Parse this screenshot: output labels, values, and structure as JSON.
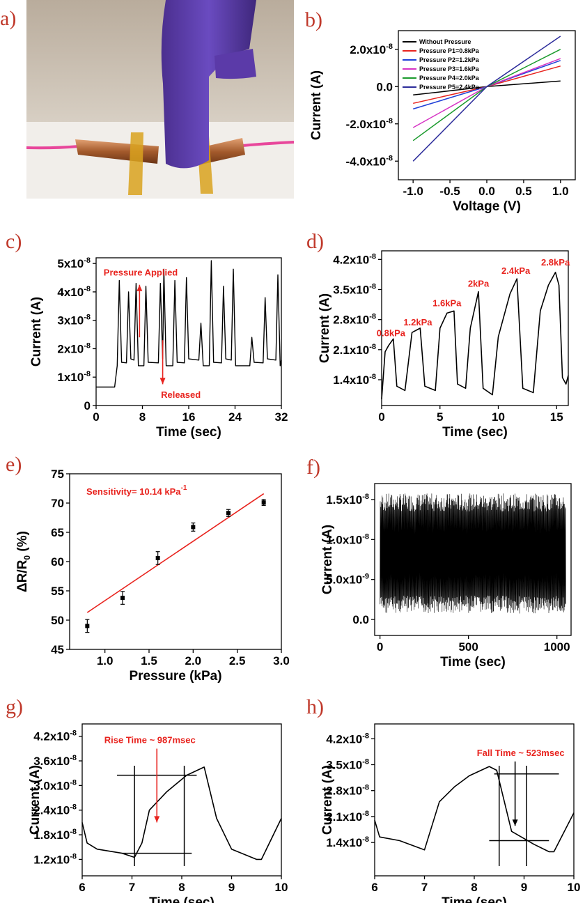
{
  "panel_labels": [
    "a)",
    "b)",
    "c)",
    "d)",
    "e)",
    "f)",
    "g)",
    "h)"
  ],
  "photo": {
    "description": "gloved finger pressing sensor between copper-taped pink wires"
  },
  "colors": {
    "annotation": "#e8231e",
    "line": "#000000",
    "fit": "#e8231e"
  },
  "chart_data": [
    {
      "id": "b",
      "type": "line",
      "xlabel": "Voltage (V)",
      "ylabel": "Current (A)",
      "xlim": [
        -1.2,
        1.2
      ],
      "ylim": [
        -5e-08,
        3e-08
      ],
      "xticks": [
        -1.0,
        -0.5,
        0.0,
        0.5,
        1.0
      ],
      "xticklabels": [
        "-1.0",
        "-0.5",
        "0.0",
        "0.5",
        "1.0"
      ],
      "yticks": [
        2e-08,
        0,
        -2e-08,
        -4e-08
      ],
      "yticklabels": [
        "2.0x10-8",
        "0.0",
        "-2.0x10-8",
        "-4.0x10-8"
      ],
      "legend": "top-left",
      "series": [
        {
          "name": "Without Pressure",
          "color": "#000000",
          "x": [
            -1,
            0,
            1
          ],
          "y": [
            -4.5e-09,
            0,
            3e-09
          ]
        },
        {
          "name": "Pressure P1=0.8kPa",
          "color": "#e8231e",
          "x": [
            -1,
            0,
            1
          ],
          "y": [
            -9e-09,
            0,
            1.1e-08
          ]
        },
        {
          "name": "Pressure P2=1.2kPa",
          "color": "#1f3fd8",
          "x": [
            -1,
            0,
            1
          ],
          "y": [
            -1.2e-08,
            0,
            1.4e-08
          ]
        },
        {
          "name": "Pressure P3=1.6kPa",
          "color": "#d633c4",
          "x": [
            -1,
            0,
            1
          ],
          "y": [
            -2.2e-08,
            0,
            1.5e-08
          ]
        },
        {
          "name": "Pressure P4=2.0kPa",
          "color": "#1a9a2c",
          "x": [
            -1,
            0,
            1
          ],
          "y": [
            -2.9e-08,
            0,
            2e-08
          ]
        },
        {
          "name": "Pressure P5=2.4kPa",
          "color": "#2b2b9a",
          "x": [
            -1,
            0,
            1
          ],
          "y": [
            -4e-08,
            0,
            2.7e-08
          ]
        }
      ]
    },
    {
      "id": "c",
      "type": "line",
      "xlabel": "Time (sec)",
      "ylabel": "Current (A)",
      "xlim": [
        0,
        32
      ],
      "ylim": [
        0,
        5.2e-08
      ],
      "xticks": [
        0,
        8,
        16,
        24,
        32
      ],
      "xticklabels": [
        "0",
        "8",
        "16",
        "24",
        "32"
      ],
      "yticks": [
        0,
        1e-08,
        2e-08,
        3e-08,
        4e-08,
        5e-08
      ],
      "yticklabels": [
        "0",
        "1x10-8",
        "2x10-8",
        "3x10-8",
        "4x10-8",
        "5x10-8"
      ],
      "annotations": [
        "Pressure Applied",
        "Released"
      ],
      "baseline": 6.5e-09,
      "start": 3.2,
      "low": 1.4e-08,
      "peaks": [
        [
          4.0,
          4.4e-08
        ],
        [
          5.6,
          4e-08
        ],
        [
          6.9,
          4.3e-08
        ],
        [
          8.6,
          4.2e-08
        ],
        [
          11.1,
          4.3e-08
        ],
        [
          11.7,
          4.8e-08
        ],
        [
          13.6,
          4.4e-08
        ],
        [
          15.6,
          4.5e-08
        ],
        [
          18.1,
          2.9e-08
        ],
        [
          19.9,
          5.1e-08
        ],
        [
          22.0,
          4.2e-08
        ],
        [
          23.7,
          4.8e-08
        ],
        [
          26.9,
          2.4e-08
        ],
        [
          29.2,
          3.8e-08
        ],
        [
          31.4,
          4.6e-08
        ]
      ],
      "end": [
        32,
        1.6e-08
      ]
    },
    {
      "id": "d",
      "type": "line",
      "xlabel": "Time (sec)",
      "ylabel": "Current (A)",
      "xlim": [
        0,
        16
      ],
      "ylim": [
        8e-09,
        4.4e-08
      ],
      "xticks": [
        0,
        5,
        10,
        15
      ],
      "xticklabels": [
        "0",
        "5",
        "10",
        "15"
      ],
      "yticks": [
        1.4e-08,
        2.1e-08,
        2.8e-08,
        3.5e-08,
        4.2e-08
      ],
      "yticklabels": [
        "1.4x10-8",
        "2.1x10-8",
        "2.8x10-8",
        "3.5x10-8",
        "4.2x10-8"
      ],
      "annotations": [
        {
          "t": 0.8,
          "label": "0.8kPa",
          "v": 2.3e-08
        },
        {
          "t": 3.1,
          "label": "1.2kPa",
          "v": 2.55e-08
        },
        {
          "t": 5.6,
          "label": "1.6kPa",
          "v": 3e-08
        },
        {
          "t": 8.3,
          "label": "2kPa",
          "v": 3.45e-08
        },
        {
          "t": 11.5,
          "label": "2.4kPa",
          "v": 3.75e-08
        },
        {
          "t": 14.9,
          "label": "2.8kPa",
          "v": 3.95e-08
        }
      ],
      "points": [
        [
          0,
          9.5e-09
        ],
        [
          0.3,
          2.05e-08
        ],
        [
          0.6,
          2.2e-08
        ],
        [
          1.0,
          2.35e-08
        ],
        [
          1.3,
          1.25e-08
        ],
        [
          2.0,
          1.15e-08
        ],
        [
          2.6,
          2.5e-08
        ],
        [
          3.3,
          2.6e-08
        ],
        [
          3.7,
          1.25e-08
        ],
        [
          4.6,
          1.15e-08
        ],
        [
          5.0,
          2.6e-08
        ],
        [
          5.6,
          2.95e-08
        ],
        [
          6.2,
          3e-08
        ],
        [
          6.5,
          1.3e-08
        ],
        [
          7.2,
          1.2e-08
        ],
        [
          7.6,
          2.6e-08
        ],
        [
          8.3,
          3.45e-08
        ],
        [
          8.7,
          1.2e-08
        ],
        [
          9.5,
          1.05e-08
        ],
        [
          10.0,
          2.4e-08
        ],
        [
          11.0,
          3.4e-08
        ],
        [
          11.6,
          3.75e-08
        ],
        [
          12.1,
          1.2e-08
        ],
        [
          13.0,
          1.1e-08
        ],
        [
          13.6,
          3e-08
        ],
        [
          14.3,
          3.6e-08
        ],
        [
          14.9,
          3.9e-08
        ],
        [
          15.2,
          3.6e-08
        ],
        [
          15.5,
          1.45e-08
        ],
        [
          15.8,
          1.3e-08
        ],
        [
          16,
          1.5e-08
        ]
      ]
    },
    {
      "id": "e",
      "type": "scatter",
      "xlabel": "Pressure (kPa)",
      "ylabel": "ΔR/R0 (%)",
      "xlim": [
        0.6,
        3.0
      ],
      "ylim": [
        45,
        75
      ],
      "xticks": [
        1.0,
        1.5,
        2.0,
        2.5,
        3.0
      ],
      "xticklabels": [
        "1.0",
        "1.5",
        "2.0",
        "2.5",
        "3.0"
      ],
      "yticks": [
        45,
        50,
        55,
        60,
        65,
        70,
        75
      ],
      "yticklabels": [
        "45",
        "50",
        "55",
        "60",
        "65",
        "70",
        "75"
      ],
      "annotation": "Sensitivity= 10.14 kPa-1",
      "x": [
        0.8,
        1.2,
        1.6,
        2.0,
        2.4,
        2.8
      ],
      "y": [
        49.0,
        53.8,
        60.6,
        65.9,
        68.3,
        70.1
      ],
      "err": [
        1.1,
        1.1,
        1.1,
        0.7,
        0.6,
        0.5
      ],
      "fit": {
        "x": [
          0.8,
          2.8
        ],
        "y": [
          51.3,
          71.6
        ]
      }
    },
    {
      "id": "f",
      "type": "line",
      "xlabel": "Time (sec)",
      "ylabel": "Current (A)",
      "xlim": [
        -30,
        1080
      ],
      "ylim": [
        -2e-09,
        1.7e-08
      ],
      "xticks": [
        0,
        500,
        1000
      ],
      "xticklabels": [
        "0",
        "500",
        "1000"
      ],
      "yticks": [
        0,
        5e-09,
        1e-08,
        1.5e-08
      ],
      "yticklabels": [
        "0.0",
        "5.0x10-9",
        "1.0x10-8",
        "1.5x10-8"
      ],
      "noise": {
        "t0": 0,
        "t1": 1050,
        "low": 3e-09,
        "high": 1.35e-08,
        "min": 5e-10,
        "max": 1.6e-08
      }
    },
    {
      "id": "g",
      "type": "line",
      "xlabel": "Time (sec)",
      "ylabel": "Current (A)",
      "xlim": [
        6,
        10
      ],
      "ylim": [
        8e-09,
        4.5e-08
      ],
      "xticks": [
        6,
        7,
        8,
        9,
        10
      ],
      "xticklabels": [
        "6",
        "7",
        "8",
        "9",
        "10"
      ],
      "yticks": [
        1.2e-08,
        1.8e-08,
        2.4e-08,
        3e-08,
        3.6e-08,
        4.2e-08
      ],
      "yticklabels": [
        "1.2x10-8",
        "1.8x10-8",
        "2.4x10-8",
        "3.0x10-8",
        "3.6x10-8",
        "4.2x10-8"
      ],
      "annotation": "Rise Time ~ 987msec",
      "points": [
        [
          6,
          2.1e-08
        ],
        [
          6.1,
          1.6e-08
        ],
        [
          6.3,
          1.45e-08
        ],
        [
          6.8,
          1.35e-08
        ],
        [
          7.05,
          1.25e-08
        ],
        [
          7.2,
          1.6e-08
        ],
        [
          7.35,
          2.4e-08
        ],
        [
          7.7,
          2.85e-08
        ],
        [
          8.1,
          3.25e-08
        ],
        [
          8.45,
          3.45e-08
        ],
        [
          8.7,
          2.2e-08
        ],
        [
          9.0,
          1.45e-08
        ],
        [
          9.5,
          1.2e-08
        ],
        [
          9.6,
          1.2e-08
        ],
        [
          10,
          2.2e-08
        ]
      ],
      "guides": {
        "vx": [
          7.05,
          8.05
        ],
        "hy": [
          1.35e-08,
          3.25e-08
        ],
        "hx": [
          [
            6.8,
            8.2
          ],
          [
            6.7,
            8.3
          ]
        ]
      },
      "arrow": {
        "x": 7.5,
        "y_top": 4e-08,
        "y_bot": 2.1e-08
      }
    },
    {
      "id": "h",
      "type": "line",
      "xlabel": "Time (sec)",
      "ylabel": "Current (A)",
      "xlim": [
        6,
        10
      ],
      "ylim": [
        5e-09,
        4.6e-08
      ],
      "xticks": [
        6,
        7,
        8,
        9,
        10
      ],
      "xticklabels": [
        "6",
        "7",
        "8",
        "9",
        "10"
      ],
      "yticks": [
        1.4e-08,
        2.1e-08,
        2.8e-08,
        3.5e-08,
        4.2e-08
      ],
      "yticklabels": [
        "1.4x10-8",
        "2.1x10-8",
        "2.8x10-8",
        "3.5x10-8",
        "4.2x10-8"
      ],
      "annotation": "Fall Time ~ 523msec",
      "points": [
        [
          6,
          2e-08
        ],
        [
          6.1,
          1.55e-08
        ],
        [
          6.5,
          1.45e-08
        ],
        [
          7.0,
          1.2e-08
        ],
        [
          7.3,
          2.5e-08
        ],
        [
          7.6,
          2.9e-08
        ],
        [
          7.9,
          3.2e-08
        ],
        [
          8.3,
          3.45e-08
        ],
        [
          8.45,
          3.35e-08
        ],
        [
          8.75,
          1.7e-08
        ],
        [
          9.2,
          1.35e-08
        ],
        [
          9.5,
          1.15e-08
        ],
        [
          9.6,
          1.15e-08
        ],
        [
          10,
          2.2e-08
        ]
      ],
      "guides": {
        "vx": [
          8.5,
          9.05
        ],
        "hy": [
          1.45e-08,
          3.25e-08
        ],
        "hx": [
          [
            8.3,
            9.5
          ],
          [
            8.4,
            9.7
          ]
        ]
      },
      "arrow": {
        "x": 8.82,
        "y_top": 3.7e-08,
        "y_bot": 1.85e-08
      }
    }
  ]
}
